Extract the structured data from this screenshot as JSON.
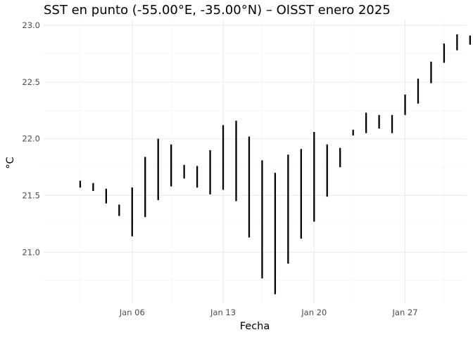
{
  "chart_data": {
    "type": "range-bar",
    "title": "SST en punto (-55.00°E, -35.00°N) – OISST enero 2025",
    "xlabel": "Fecha",
    "ylabel": "°C",
    "ylim": [
      20.55,
      23.05
    ],
    "y_major_ticks": [
      21.0,
      21.5,
      22.0,
      22.5,
      23.0
    ],
    "y_tick_labels": [
      "21.0",
      "21.5",
      "22.0",
      "22.5",
      "23.0"
    ],
    "y_minor_ticks": [
      20.75,
      21.25,
      21.75,
      22.25,
      22.75
    ],
    "xlim": [
      "2024-12-31",
      "2025-02-01"
    ],
    "x_major_ticks": [
      "2025-01-06",
      "2025-01-13",
      "2025-01-20",
      "2025-01-27"
    ],
    "x_tick_labels": [
      "Jan 06",
      "Jan 13",
      "Jan 20",
      "Jan 27"
    ],
    "x_minor_ticks": [
      "2025-01-02",
      "2025-01-09",
      "2025-01-16",
      "2025-01-23",
      "2025-01-30"
    ],
    "grid": true,
    "legend": "none",
    "bar_color": "#000000",
    "ranges": [
      {
        "date": "2025-01-02",
        "low": 21.57,
        "high": 21.63
      },
      {
        "date": "2025-01-03",
        "low": 21.54,
        "high": 21.61
      },
      {
        "date": "2025-01-04",
        "low": 21.43,
        "high": 21.56
      },
      {
        "date": "2025-01-05",
        "low": 21.32,
        "high": 21.42
      },
      {
        "date": "2025-01-06",
        "low": 21.14,
        "high": 21.57
      },
      {
        "date": "2025-01-07",
        "low": 21.31,
        "high": 21.84
      },
      {
        "date": "2025-01-08",
        "low": 21.46,
        "high": 22.0
      },
      {
        "date": "2025-01-09",
        "low": 21.58,
        "high": 21.95
      },
      {
        "date": "2025-01-10",
        "low": 21.65,
        "high": 21.77
      },
      {
        "date": "2025-01-11",
        "low": 21.57,
        "high": 21.76
      },
      {
        "date": "2025-01-12",
        "low": 21.51,
        "high": 21.9
      },
      {
        "date": "2025-01-13",
        "low": 21.55,
        "high": 22.12
      },
      {
        "date": "2025-01-14",
        "low": 21.45,
        "high": 22.16
      },
      {
        "date": "2025-01-15",
        "low": 21.13,
        "high": 22.02
      },
      {
        "date": "2025-01-16",
        "low": 20.77,
        "high": 21.81
      },
      {
        "date": "2025-01-17",
        "low": 20.63,
        "high": 21.7
      },
      {
        "date": "2025-01-18",
        "low": 20.9,
        "high": 21.86
      },
      {
        "date": "2025-01-19",
        "low": 21.12,
        "high": 21.91
      },
      {
        "date": "2025-01-20",
        "low": 21.27,
        "high": 22.06
      },
      {
        "date": "2025-01-21",
        "low": 21.49,
        "high": 21.95
      },
      {
        "date": "2025-01-22",
        "low": 21.75,
        "high": 21.92
      },
      {
        "date": "2025-01-23",
        "low": 22.03,
        "high": 22.08
      },
      {
        "date": "2025-01-24",
        "low": 22.05,
        "high": 22.23
      },
      {
        "date": "2025-01-25",
        "low": 22.09,
        "high": 22.21
      },
      {
        "date": "2025-01-26",
        "low": 22.05,
        "high": 22.21
      },
      {
        "date": "2025-01-27",
        "low": 22.21,
        "high": 22.39
      },
      {
        "date": "2025-01-28",
        "low": 22.31,
        "high": 22.53
      },
      {
        "date": "2025-01-29",
        "low": 22.49,
        "high": 22.68
      },
      {
        "date": "2025-01-30",
        "low": 22.67,
        "high": 22.84
      },
      {
        "date": "2025-01-31",
        "low": 22.78,
        "high": 22.92
      },
      {
        "date": "2025-02-01",
        "low": 22.83,
        "high": 22.91
      }
    ]
  }
}
